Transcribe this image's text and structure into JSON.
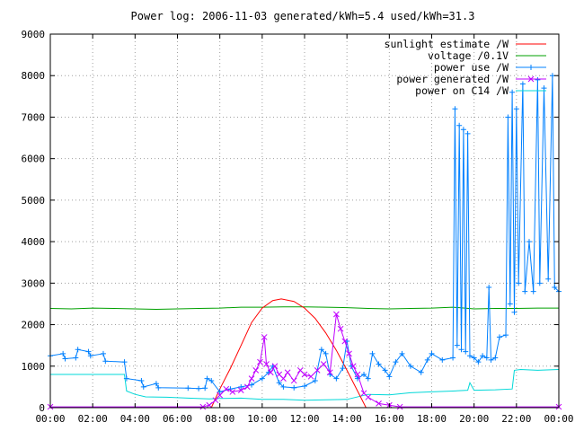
{
  "chart_data": {
    "type": "line",
    "title": "Power log: 2006-11-03 generated/kWh=5.4 used/kWh=31.3",
    "xlim": [
      0,
      24
    ],
    "ylim": [
      0,
      9000
    ],
    "x_ticks": [
      "00:00",
      "02:00",
      "04:00",
      "06:00",
      "08:00",
      "10:00",
      "12:00",
      "14:00",
      "16:00",
      "18:00",
      "20:00",
      "22:00",
      "00:00"
    ],
    "y_ticks": [
      "0",
      "1000",
      "2000",
      "3000",
      "4000",
      "5000",
      "6000",
      "7000",
      "8000",
      "9000"
    ],
    "grid": true,
    "legend_position": "top-right",
    "series": [
      {
        "name": "sunlight estimate /W",
        "color": "#ff0000",
        "marker": "none",
        "points": [
          [
            7.6,
            0
          ],
          [
            8.0,
            450
          ],
          [
            8.5,
            950
          ],
          [
            9.0,
            1500
          ],
          [
            9.5,
            2050
          ],
          [
            10.0,
            2400
          ],
          [
            10.5,
            2580
          ],
          [
            10.9,
            2620
          ],
          [
            11.5,
            2560
          ],
          [
            12.0,
            2400
          ],
          [
            12.5,
            2150
          ],
          [
            13.0,
            1800
          ],
          [
            13.5,
            1380
          ],
          [
            14.0,
            900
          ],
          [
            14.5,
            400
          ],
          [
            14.9,
            0
          ]
        ]
      },
      {
        "name": "voltage /0.1V",
        "color": "#00a000",
        "marker": "none",
        "points": [
          [
            0,
            2390
          ],
          [
            1,
            2380
          ],
          [
            2,
            2400
          ],
          [
            3,
            2390
          ],
          [
            4,
            2380
          ],
          [
            5,
            2370
          ],
          [
            6,
            2380
          ],
          [
            7,
            2390
          ],
          [
            8,
            2400
          ],
          [
            9,
            2420
          ],
          [
            10,
            2420
          ],
          [
            11,
            2430
          ],
          [
            12,
            2430
          ],
          [
            13,
            2420
          ],
          [
            14,
            2410
          ],
          [
            15,
            2390
          ],
          [
            16,
            2380
          ],
          [
            17,
            2390
          ],
          [
            18,
            2400
          ],
          [
            19,
            2420
          ],
          [
            20,
            2380
          ],
          [
            21,
            2390
          ],
          [
            22,
            2390
          ],
          [
            23,
            2400
          ],
          [
            24,
            2400
          ]
        ]
      },
      {
        "name": "power use /W",
        "color": "#0080ff",
        "marker": "plus",
        "points": [
          [
            0,
            1250
          ],
          [
            0.6,
            1300
          ],
          [
            0.7,
            1180
          ],
          [
            1.2,
            1200
          ],
          [
            1.3,
            1400
          ],
          [
            1.8,
            1350
          ],
          [
            1.9,
            1250
          ],
          [
            2.5,
            1300
          ],
          [
            2.6,
            1120
          ],
          [
            3.5,
            1100
          ],
          [
            3.6,
            700
          ],
          [
            4.3,
            650
          ],
          [
            4.4,
            500
          ],
          [
            5.0,
            580
          ],
          [
            5.1,
            480
          ],
          [
            6.5,
            470
          ],
          [
            7.0,
            460
          ],
          [
            7.3,
            470
          ],
          [
            7.4,
            700
          ],
          [
            7.6,
            650
          ],
          [
            8.0,
            380
          ],
          [
            8.5,
            450
          ],
          [
            9.0,
            500
          ],
          [
            9.5,
            550
          ],
          [
            10.0,
            700
          ],
          [
            10.3,
            850
          ],
          [
            10.5,
            1000
          ],
          [
            10.8,
            600
          ],
          [
            11.0,
            500
          ],
          [
            11.5,
            480
          ],
          [
            12.0,
            520
          ],
          [
            12.5,
            650
          ],
          [
            12.8,
            1400
          ],
          [
            13.0,
            1300
          ],
          [
            13.2,
            800
          ],
          [
            13.5,
            700
          ],
          [
            13.8,
            950
          ],
          [
            14.0,
            1600
          ],
          [
            14.2,
            1000
          ],
          [
            14.5,
            700
          ],
          [
            14.8,
            800
          ],
          [
            15.0,
            700
          ],
          [
            15.2,
            1300
          ],
          [
            15.5,
            1050
          ],
          [
            15.8,
            900
          ],
          [
            16.0,
            750
          ],
          [
            16.3,
            1100
          ],
          [
            16.6,
            1300
          ],
          [
            17.0,
            1000
          ],
          [
            17.5,
            850
          ],
          [
            17.8,
            1150
          ],
          [
            18.0,
            1300
          ],
          [
            18.5,
            1150
          ],
          [
            19.0,
            1200
          ],
          [
            19.1,
            7200
          ],
          [
            19.2,
            1500
          ],
          [
            19.3,
            6800
          ],
          [
            19.4,
            1400
          ],
          [
            19.5,
            6700
          ],
          [
            19.6,
            1350
          ],
          [
            19.7,
            6600
          ],
          [
            19.8,
            1250
          ],
          [
            20.0,
            1200
          ],
          [
            20.2,
            1100
          ],
          [
            20.4,
            1250
          ],
          [
            20.6,
            1200
          ],
          [
            20.7,
            2900
          ],
          [
            20.8,
            1150
          ],
          [
            21.0,
            1200
          ],
          [
            21.2,
            1700
          ],
          [
            21.5,
            1750
          ],
          [
            21.6,
            7000
          ],
          [
            21.7,
            2500
          ],
          [
            21.8,
            7600
          ],
          [
            21.9,
            2300
          ],
          [
            22.0,
            7200
          ],
          [
            22.1,
            3000
          ],
          [
            22.3,
            7800
          ],
          [
            22.4,
            2800
          ],
          [
            22.6,
            4000
          ],
          [
            22.8,
            2800
          ],
          [
            23.0,
            7900
          ],
          [
            23.1,
            3000
          ],
          [
            23.3,
            7700
          ],
          [
            23.5,
            3100
          ],
          [
            23.7,
            8000
          ],
          [
            23.8,
            2900
          ],
          [
            24,
            2800
          ]
        ]
      },
      {
        "name": "power generated /W",
        "color": "#c000ff",
        "marker": "cross",
        "points": [
          [
            0,
            20
          ],
          [
            7.2,
            20
          ],
          [
            7.5,
            60
          ],
          [
            7.8,
            180
          ],
          [
            8.0,
            300
          ],
          [
            8.3,
            450
          ],
          [
            8.6,
            380
          ],
          [
            9.0,
            420
          ],
          [
            9.3,
            500
          ],
          [
            9.5,
            700
          ],
          [
            9.7,
            900
          ],
          [
            9.9,
            1100
          ],
          [
            10.1,
            1700
          ],
          [
            10.2,
            1050
          ],
          [
            10.4,
            850
          ],
          [
            10.6,
            1000
          ],
          [
            10.8,
            800
          ],
          [
            11.0,
            700
          ],
          [
            11.2,
            850
          ],
          [
            11.5,
            650
          ],
          [
            11.8,
            900
          ],
          [
            12.0,
            800
          ],
          [
            12.3,
            750
          ],
          [
            12.6,
            900
          ],
          [
            12.9,
            1050
          ],
          [
            13.2,
            850
          ],
          [
            13.5,
            2250
          ],
          [
            13.7,
            1900
          ],
          [
            13.9,
            1600
          ],
          [
            14.1,
            1300
          ],
          [
            14.3,
            1000
          ],
          [
            14.5,
            800
          ],
          [
            14.8,
            350
          ],
          [
            15.0,
            250
          ],
          [
            15.5,
            100
          ],
          [
            16.0,
            60
          ],
          [
            16.5,
            20
          ],
          [
            24,
            20
          ]
        ]
      },
      {
        "name": "power on C14 /W",
        "color": "#00d8d8",
        "marker": "none",
        "points": [
          [
            0,
            800
          ],
          [
            3.5,
            800
          ],
          [
            3.6,
            400
          ],
          [
            4.0,
            320
          ],
          [
            4.5,
            260
          ],
          [
            5.5,
            250
          ],
          [
            6.5,
            230
          ],
          [
            7.5,
            210
          ],
          [
            8.0,
            220
          ],
          [
            9.0,
            230
          ],
          [
            10.0,
            200
          ],
          [
            11.0,
            200
          ],
          [
            12.0,
            180
          ],
          [
            13.0,
            190
          ],
          [
            14.0,
            200
          ],
          [
            15.0,
            320
          ],
          [
            16.0,
            310
          ],
          [
            17.0,
            360
          ],
          [
            18.0,
            380
          ],
          [
            19.0,
            400
          ],
          [
            19.7,
            420
          ],
          [
            19.8,
            600
          ],
          [
            20.0,
            420
          ],
          [
            21.0,
            430
          ],
          [
            21.8,
            450
          ],
          [
            21.9,
            900
          ],
          [
            22.2,
            920
          ],
          [
            23.0,
            900
          ],
          [
            24,
            920
          ]
        ]
      }
    ]
  }
}
